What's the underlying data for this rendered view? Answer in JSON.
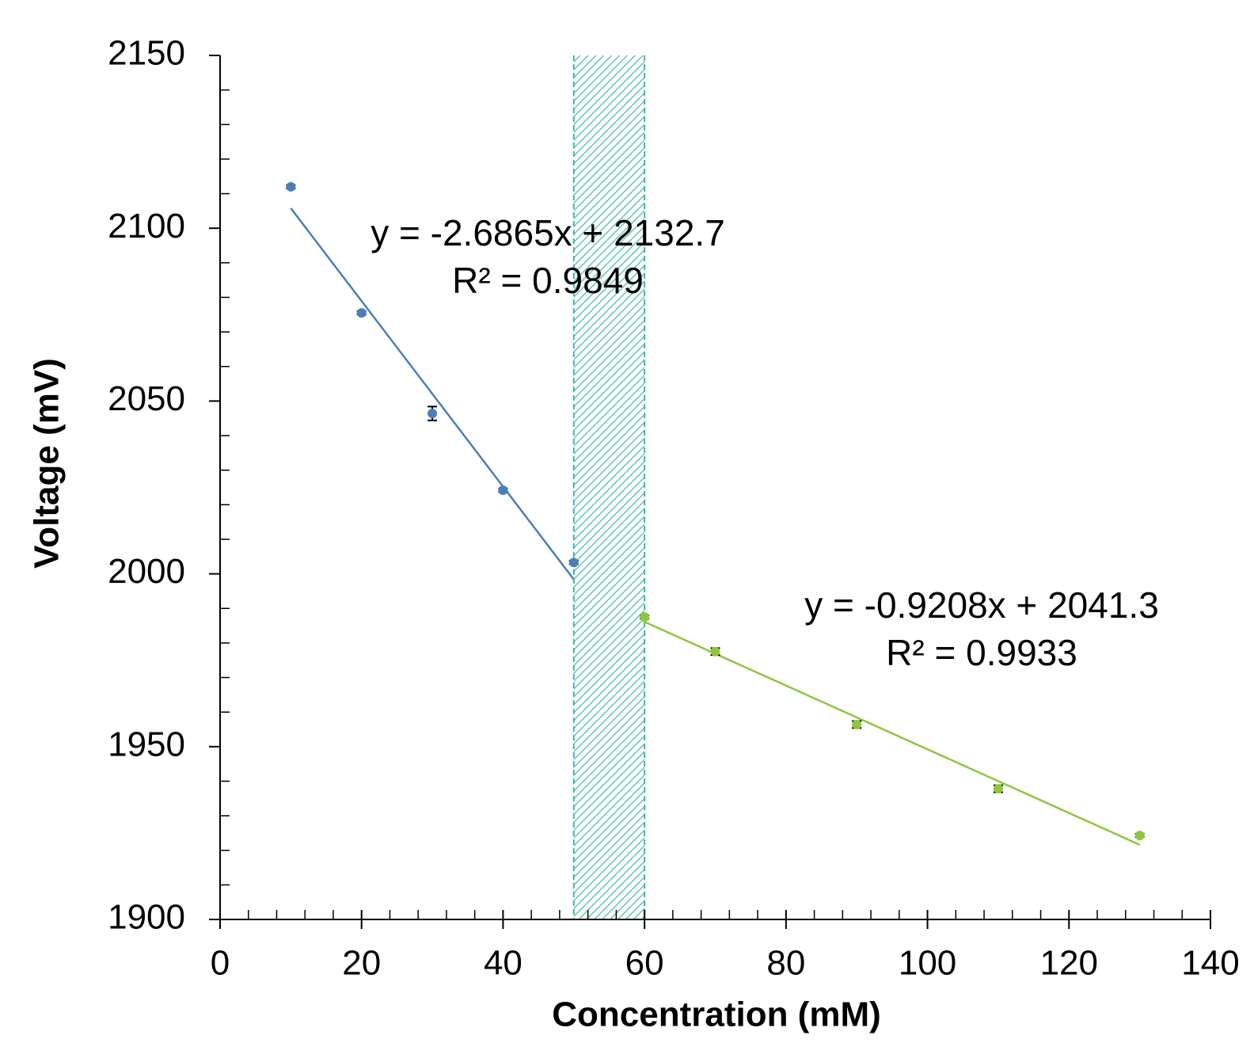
{
  "chart_data": {
    "type": "scatter",
    "xlabel": "Concentration (mM)",
    "ylabel": "Voltage (mV)",
    "xlim": [
      0,
      140
    ],
    "xticks": [
      0,
      20,
      40,
      60,
      80,
      100,
      120,
      140
    ],
    "ylim": [
      1900,
      2150
    ],
    "yticks": [
      1900,
      1950,
      2000,
      2050,
      2100,
      2150
    ],
    "xminorticks": [
      4,
      8,
      12,
      16,
      24,
      28,
      32,
      36,
      44,
      48,
      52,
      56,
      64,
      68,
      72,
      76,
      84,
      88,
      92,
      96,
      104,
      108,
      112,
      116,
      124,
      128,
      132,
      136
    ],
    "yminorticks": [
      1910,
      1920,
      1930,
      1940,
      1960,
      1970,
      1980,
      1990,
      2010,
      2020,
      2030,
      2040,
      2060,
      2070,
      2080,
      2090,
      2110,
      2120,
      2130,
      2140
    ],
    "series": [
      {
        "color": "#4a7ebb",
        "x": [
          10,
          20,
          30,
          40,
          50
        ],
        "values": [
          2112,
          2075.5,
          2046.4,
          2024.2,
          2003.3
        ],
        "errors": [
          0.5,
          0.5,
          2,
          0.5,
          0.5
        ]
      },
      {
        "color": "#8dc63f",
        "x": [
          60,
          70,
          90,
          110,
          130
        ],
        "values": [
          1987.5,
          1977.5,
          1956.4,
          1937.8,
          1924.3
        ],
        "errors": [
          0.5,
          1,
          1,
          1,
          0.5
        ]
      }
    ],
    "trendlines": [
      {
        "color": "#4a7ebb",
        "x": [
          10,
          50
        ],
        "values": [
          2105.8,
          1998.4
        ],
        "equation": "y = -2.6865x + 2132.7",
        "r2": "R² = 0.9849"
      },
      {
        "color": "#8dc63f",
        "x": [
          60,
          130
        ],
        "values": [
          1986.1,
          1921.6
        ],
        "equation": "y = -0.9208x + 2041.3",
        "r2": "R² = 0.9933"
      }
    ],
    "shaded_region": {
      "x": [
        50,
        60
      ],
      "color": "#3bb8a4"
    }
  }
}
